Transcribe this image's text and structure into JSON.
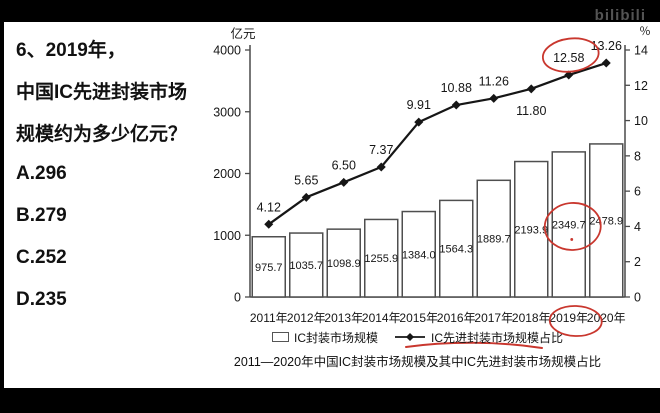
{
  "watermark": "bilibili",
  "question": {
    "line1": "6、2019年，",
    "line2": "中国IC先进封装市场",
    "line3": "规模约为多少亿元？",
    "options": [
      "A.296",
      "B.279",
      "C.252",
      "D.235"
    ]
  },
  "chart_data": {
    "type": "bar",
    "title": "2011—2020年中国IC封装市场规模及其中IC先进封装市场规模占比",
    "categories": [
      "2011年",
      "2012年",
      "2013年",
      "2014年",
      "2015年",
      "2016年",
      "2017年",
      "2018年",
      "2019年",
      "2020年"
    ],
    "series": [
      {
        "name": "IC封装市场规模",
        "type": "bar",
        "axis": "left",
        "values": [
          975.7,
          1035.7,
          1098.9,
          1255.9,
          1384.0,
          1564.3,
          1889.7,
          2193.9,
          2349.7,
          2478.9
        ],
        "labels": [
          "975.7",
          "1035.7",
          "1098.9",
          "1255.9",
          "1384.0",
          "1564.3",
          "1889.7",
          "2193.9",
          "2349.7",
          "2478.9"
        ]
      },
      {
        "name": "IC先进封装市场规模占比",
        "type": "line",
        "axis": "right",
        "values": [
          4.12,
          5.65,
          6.5,
          7.37,
          9.91,
          10.88,
          11.26,
          11.8,
          12.58,
          13.26
        ],
        "labels": [
          "4.12",
          "5.65",
          "6.50",
          "7.37",
          "9.91",
          "10.88",
          "11.26",
          "11.80",
          "12.58",
          "13.26"
        ],
        "label_below": [
          "11.80"
        ]
      }
    ],
    "left_axis": {
      "label": "亿元",
      "range": [
        0,
        4000
      ],
      "ticks": [
        0,
        1000,
        2000,
        3000,
        4000
      ]
    },
    "right_axis": {
      "label": "％",
      "range": [
        0,
        14
      ],
      "ticks": [
        0,
        2,
        4,
        6,
        8,
        10,
        12,
        14
      ]
    },
    "legend_position": "bottom",
    "grid": false,
    "annotations": {
      "color": "#c9372e",
      "circled_percent_label": "12.58",
      "circled_bar_label": "2349.7",
      "circled_category": "2019年",
      "underlined_legend": "IC先进封装市场规模占比"
    }
  }
}
